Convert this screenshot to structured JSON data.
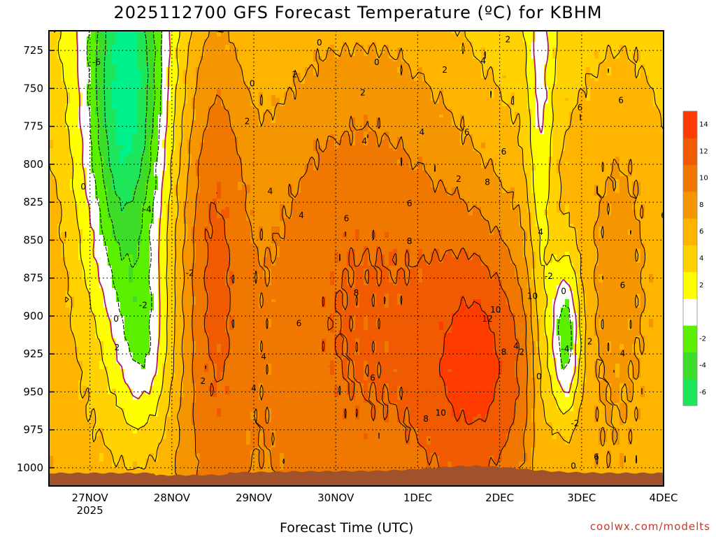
{
  "title": "2025112700 GFS Forecast Temperature (ºC) for KBHM",
  "xlabel": "Forecast Time (UTC)",
  "credit": "coolwx.com/modelts",
  "chart_data": {
    "type": "contour",
    "y_axis": {
      "ticks": [
        725,
        750,
        775,
        800,
        825,
        850,
        875,
        900,
        925,
        950,
        975,
        1000
      ],
      "range": [
        712,
        1012
      ],
      "orientation": "pressure-decreasing-upward"
    },
    "x_axis": {
      "ticks": [
        "27NOV",
        "28NOV",
        "29NOV",
        "30NOV",
        "1DEC",
        "2DEC",
        "3DEC",
        "4DEC"
      ],
      "first_tick_year": "2025",
      "range_days": [
        0,
        7.5
      ]
    },
    "colorbar": {
      "levels": [
        -8,
        -6,
        -4,
        -2,
        0,
        2,
        4,
        6,
        8,
        10,
        12,
        14,
        16
      ],
      "labels": [
        "-6",
        "-4",
        "-2",
        "2",
        "4",
        "6",
        "8",
        "10",
        "12",
        "14"
      ],
      "colors": [
        "#00f08c",
        "#1ee65a",
        "#3cdc28",
        "#5af000",
        "#ffffff",
        "#ffff00",
        "#ffd200",
        "#ffb400",
        "#f59600",
        "#f07800",
        "#f05a00",
        "#ff3c00"
      ]
    },
    "contour_labels": [
      {
        "text": "-6",
        "t": 0.58,
        "p": 733
      },
      {
        "text": "-4",
        "t": 1.2,
        "p": 830
      },
      {
        "text": "-2",
        "t": 1.15,
        "p": 893
      },
      {
        "text": "-2",
        "t": 1.72,
        "p": 872
      },
      {
        "text": "0",
        "t": 0.42,
        "p": 815
      },
      {
        "text": "0",
        "t": 0.82,
        "p": 902
      },
      {
        "text": "0",
        "t": 2.48,
        "p": 747
      },
      {
        "text": "0",
        "t": 3.3,
        "p": 720
      },
      {
        "text": "0",
        "t": 4.0,
        "p": 733
      },
      {
        "text": "2",
        "t": 0.83,
        "p": 921
      },
      {
        "text": "2",
        "t": 1.88,
        "p": 943
      },
      {
        "text": "2",
        "t": 2.42,
        "p": 772
      },
      {
        "text": "2",
        "t": 3.0,
        "p": 741
      },
      {
        "text": "2",
        "t": 3.83,
        "p": 753
      },
      {
        "text": "2",
        "t": 4.83,
        "p": 738
      },
      {
        "text": "2",
        "t": 5.6,
        "p": 718
      },
      {
        "text": "4",
        "t": 2.7,
        "p": 818
      },
      {
        "text": "4",
        "t": 3.08,
        "p": 834
      },
      {
        "text": "4",
        "t": 2.62,
        "p": 927
      },
      {
        "text": "4",
        "t": 2.5,
        "p": 948
      },
      {
        "text": "4",
        "t": 3.85,
        "p": 785
      },
      {
        "text": "4",
        "t": 4.55,
        "p": 779
      },
      {
        "text": "4",
        "t": 5.3,
        "p": 732
      },
      {
        "text": "6",
        "t": 3.63,
        "p": 836
      },
      {
        "text": "6",
        "t": 4.4,
        "p": 826
      },
      {
        "text": "6",
        "t": 5.1,
        "p": 779
      },
      {
        "text": "6",
        "t": 3.05,
        "p": 905
      },
      {
        "text": "6",
        "t": 3.95,
        "p": 941
      },
      {
        "text": "6",
        "t": 5.55,
        "p": 792
      },
      {
        "text": "6",
        "t": 6.48,
        "p": 763
      },
      {
        "text": "6",
        "t": 6.98,
        "p": 758
      },
      {
        "text": "6",
        "t": 7.5,
        "p": 834
      },
      {
        "text": "6",
        "t": 7.0,
        "p": 880
      },
      {
        "text": "8",
        "t": 3.75,
        "p": 885
      },
      {
        "text": "8",
        "t": 4.4,
        "p": 851
      },
      {
        "text": "8",
        "t": 5.35,
        "p": 812
      },
      {
        "text": "8",
        "t": 4.6,
        "p": 968
      },
      {
        "text": "8",
        "t": 5.55,
        "p": 924
      },
      {
        "text": "10",
        "t": 4.78,
        "p": 964
      },
      {
        "text": "10",
        "t": 5.45,
        "p": 896
      },
      {
        "text": "10",
        "t": 5.9,
        "p": 887
      },
      {
        "text": "12",
        "t": 5.35,
        "p": 902
      },
      {
        "text": "-2",
        "t": 6.1,
        "p": 874
      },
      {
        "text": "0",
        "t": 6.28,
        "p": 884
      },
      {
        "text": "-4",
        "t": 6.3,
        "p": 922
      },
      {
        "text": "-2",
        "t": 6.42,
        "p": 971
      },
      {
        "text": "0",
        "t": 5.98,
        "p": 940
      },
      {
        "text": "2",
        "t": 5.77,
        "p": 924
      },
      {
        "text": "2",
        "t": 6.6,
        "p": 917
      },
      {
        "text": "4",
        "t": 5.7,
        "p": 920
      },
      {
        "text": "4",
        "t": 6.0,
        "p": 845
      },
      {
        "text": "4",
        "t": 7.0,
        "p": 925
      },
      {
        "text": "6",
        "t": 6.68,
        "p": 993
      },
      {
        "text": "0",
        "t": 6.4,
        "p": 999
      },
      {
        "text": "2",
        "t": 5.0,
        "p": 810
      }
    ]
  }
}
